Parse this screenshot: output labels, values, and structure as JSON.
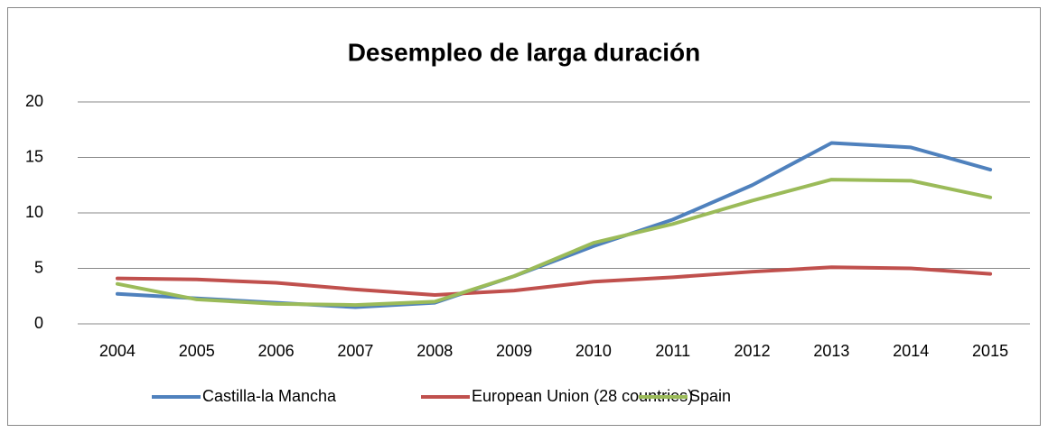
{
  "chart_data": {
    "type": "line",
    "title": "Desempleo de larga duración",
    "categories": [
      "2004",
      "2005",
      "2006",
      "2007",
      "2008",
      "2009",
      "2010",
      "2011",
      "2012",
      "2013",
      "2014",
      "2015"
    ],
    "series": [
      {
        "name": "Castilla-la Mancha",
        "color": "#4f81bd",
        "values": [
          2.7,
          2.3,
          1.9,
          1.5,
          1.9,
          4.3,
          7.0,
          9.4,
          12.5,
          16.3,
          15.9,
          13.9
        ]
      },
      {
        "name": "European Union (28 countries)",
        "color": "#c0504d",
        "values": [
          4.1,
          4.0,
          3.7,
          3.1,
          2.6,
          3.0,
          3.8,
          4.2,
          4.7,
          5.1,
          5.0,
          4.5
        ]
      },
      {
        "name": "Spain",
        "color": "#9bbb59",
        "values": [
          3.6,
          2.2,
          1.8,
          1.7,
          2.0,
          4.3,
          7.3,
          9.0,
          11.1,
          13.0,
          12.9,
          11.4
        ]
      }
    ],
    "ylim": [
      0,
      20
    ],
    "yticks": [
      0,
      5,
      10,
      15,
      20
    ],
    "grid": true,
    "legend": "bottom"
  }
}
